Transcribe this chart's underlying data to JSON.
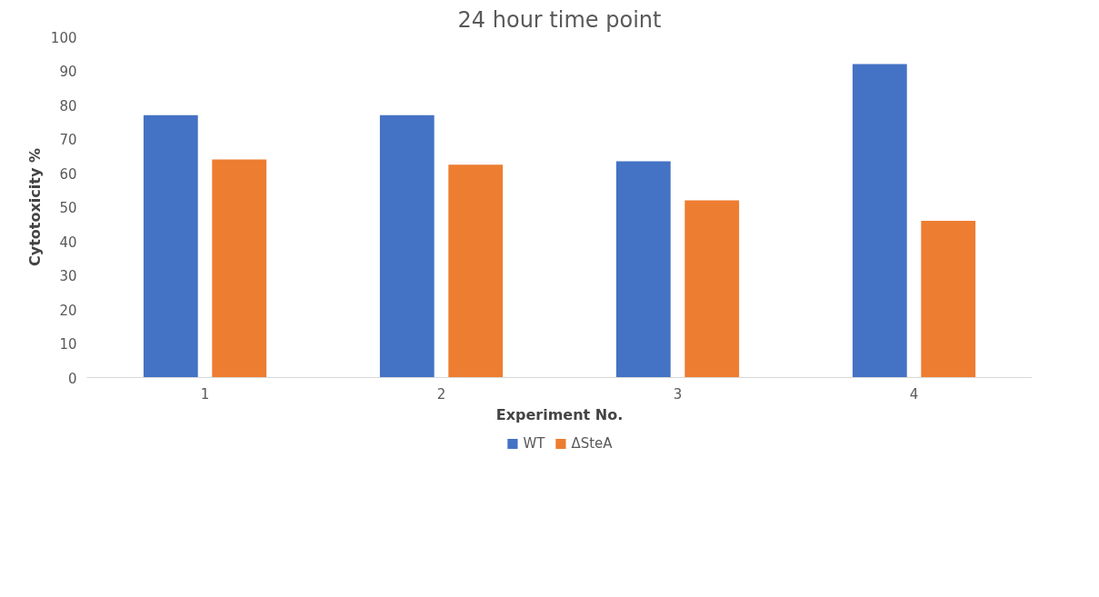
{
  "chart_data": {
    "type": "bar",
    "title": "24 hour time point",
    "xlabel": "Experiment No.",
    "ylabel": "Cytotoxicity %",
    "categories": [
      "1",
      "2",
      "3",
      "4"
    ],
    "series": [
      {
        "name": "WT",
        "color": "#4472c4",
        "values": [
          77,
          77,
          63.5,
          92
        ]
      },
      {
        "name": "ΔSteA",
        "color": "#ed7d31",
        "values": [
          64,
          62.5,
          52,
          46
        ]
      }
    ],
    "ylim": [
      0,
      100
    ],
    "yticks": [
      0,
      10,
      20,
      30,
      40,
      50,
      60,
      70,
      80,
      90,
      100
    ],
    "grid": false,
    "legend": "bottom"
  }
}
